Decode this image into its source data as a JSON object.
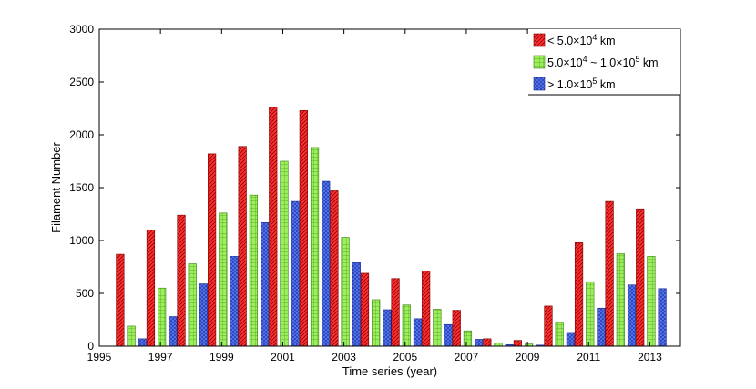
{
  "chart_data": {
    "type": "bar",
    "title": "",
    "xlabel": "Time series (year)",
    "ylabel": "Filament Number",
    "xlim": [
      1995,
      2014
    ],
    "ylim": [
      0,
      3000
    ],
    "x_ticks": [
      1995,
      1997,
      1999,
      2001,
      2003,
      2005,
      2007,
      2009,
      2011,
      2013
    ],
    "y_ticks": [
      0,
      500,
      1000,
      1500,
      2000,
      2500,
      3000
    ],
    "grid": false,
    "legend_position": "top-right",
    "categories": [
      1996,
      1997,
      1998,
      1999,
      2000,
      2001,
      2002,
      2003,
      2004,
      2005,
      2006,
      2007,
      2008,
      2009,
      2010,
      2011,
      2012,
      2013
    ],
    "series": [
      {
        "name": "< 5.0×10⁴ km",
        "name_parts": [
          "< 5.0×10",
          "4",
          " km"
        ],
        "color": "#ff2a2a",
        "pattern": "diagonal-hatch",
        "values": [
          870,
          1100,
          1240,
          1820,
          1890,
          2260,
          2230,
          1470,
          690,
          640,
          710,
          340,
          70,
          55,
          380,
          980,
          1370,
          1300
        ]
      },
      {
        "name": "5.0×10⁴ ~ 1.0×10⁵ km",
        "name_parts": [
          "5.0×10",
          "4",
          " ~ 1.0×10",
          "5",
          " km"
        ],
        "color": "#8fe84a",
        "pattern": "grid-hatch",
        "values": [
          190,
          550,
          780,
          1260,
          1430,
          1750,
          1880,
          1030,
          440,
          390,
          350,
          145,
          30,
          20,
          225,
          610,
          875,
          850
        ]
      },
      {
        "name": "> 1.0×10⁵ km",
        "name_parts": [
          "> 1.0×10",
          "5",
          " km"
        ],
        "color": "#4a66e8",
        "pattern": "cross-hatch",
        "values": [
          70,
          280,
          590,
          850,
          1170,
          1370,
          1560,
          790,
          345,
          260,
          205,
          65,
          15,
          10,
          130,
          360,
          580,
          545
        ]
      }
    ]
  }
}
